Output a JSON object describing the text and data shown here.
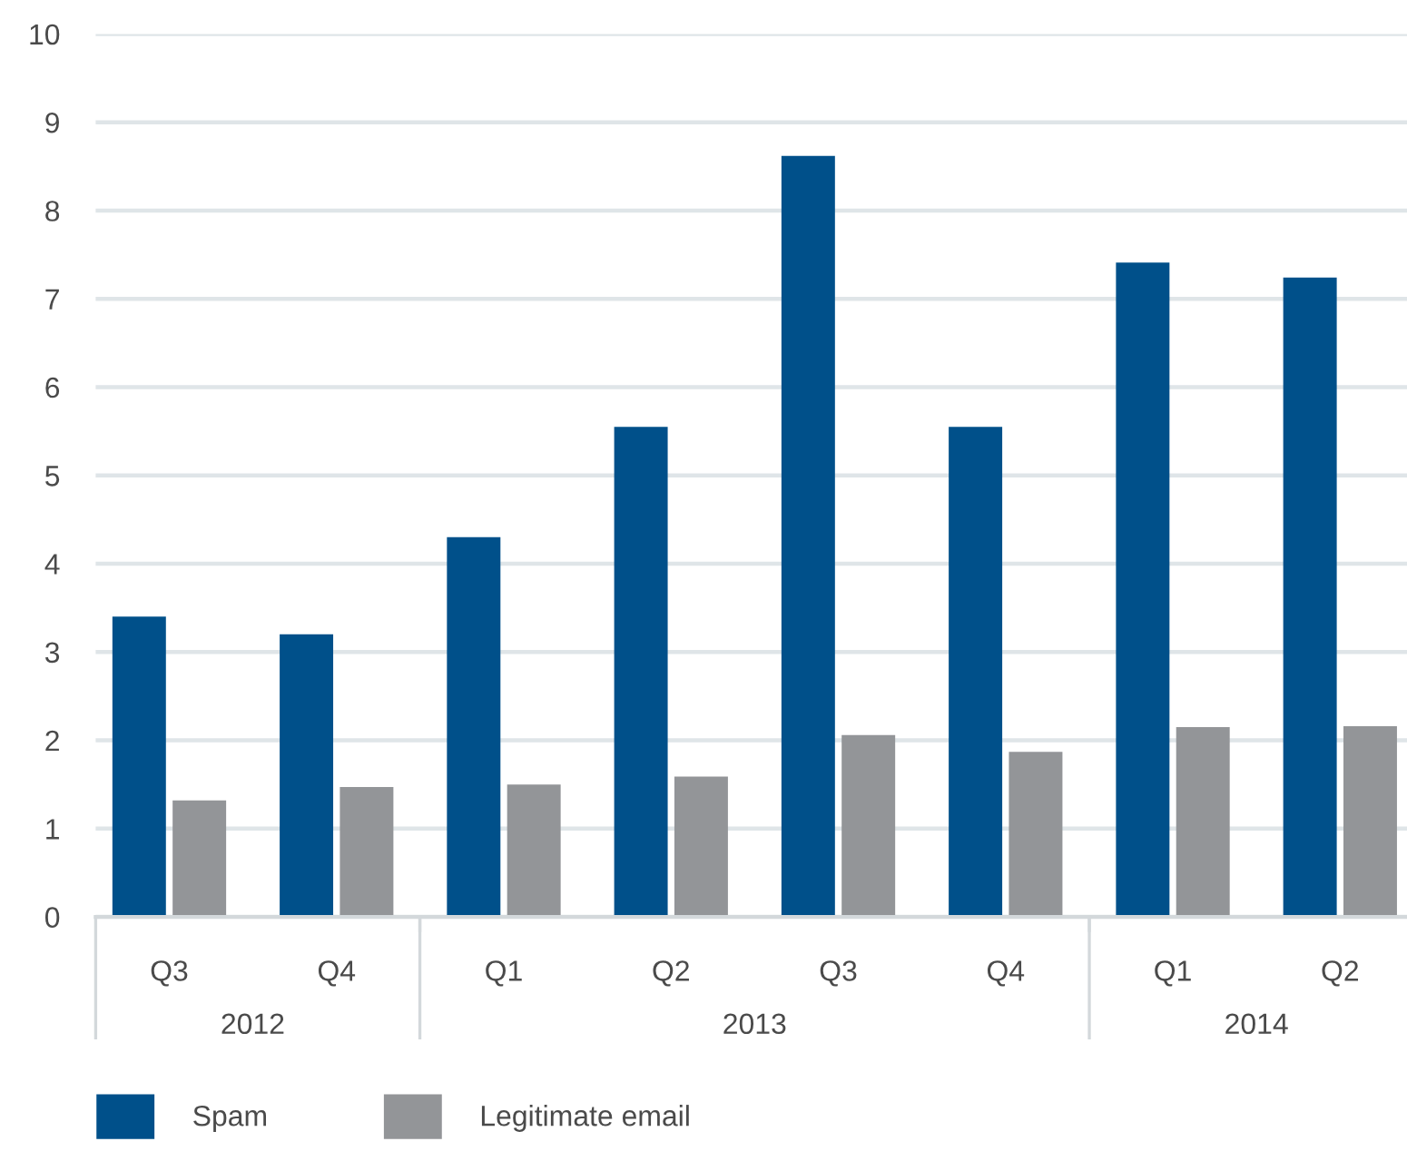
{
  "chart_data": {
    "type": "bar",
    "categories": [
      "Q3",
      "Q4",
      "Q1",
      "Q2",
      "Q3",
      "Q4",
      "Q1",
      "Q2"
    ],
    "series": [
      {
        "name": "Spam",
        "color": "#00508a",
        "values": [
          3.4,
          3.2,
          4.3,
          5.55,
          8.62,
          5.55,
          7.41,
          7.24
        ]
      },
      {
        "name": "Legitimate email",
        "color": "#939598",
        "values": [
          1.32,
          1.47,
          1.5,
          1.59,
          2.06,
          1.87,
          2.15,
          2.16
        ]
      }
    ],
    "ylim": [
      0,
      10
    ],
    "yticks": [
      0,
      1,
      2,
      3,
      4,
      5,
      6,
      7,
      8,
      9,
      10
    ],
    "x2lim": [
      2011.687,
      2014.3
    ],
    "x2ticks": [
      2012,
      {
        "value": 2012.333,
        "label": null
      },
      2013,
      {
        "value": 2013.667,
        "label": null
      },
      2014
    ],
    "grid": "y",
    "legend": "bottom left"
  }
}
